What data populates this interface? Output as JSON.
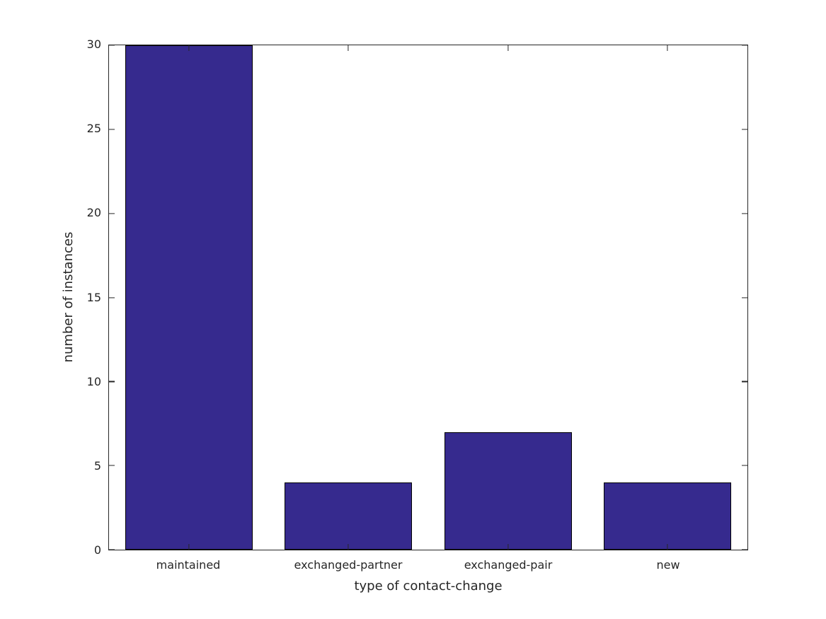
{
  "figure": {
    "background": "#ffffff",
    "axis_color": "#262626",
    "text_color": "#262626"
  },
  "chart_data": {
    "type": "bar",
    "title": "",
    "categories": [
      "maintained",
      "exchanged-partner",
      "exchanged-pair",
      "new"
    ],
    "values": [
      30,
      4,
      7,
      4
    ],
    "xlabel": "type of contact-change",
    "ylabel": "number of instances",
    "ylim": [
      0,
      30
    ],
    "yticks": [
      0,
      5,
      10,
      15,
      20,
      25,
      30
    ],
    "bar_color": "#362a8e",
    "bar_edge_color": "#000000",
    "bar_width_fraction": 0.8,
    "grid": false,
    "box": true,
    "tick_direction": "in",
    "legend": null
  }
}
